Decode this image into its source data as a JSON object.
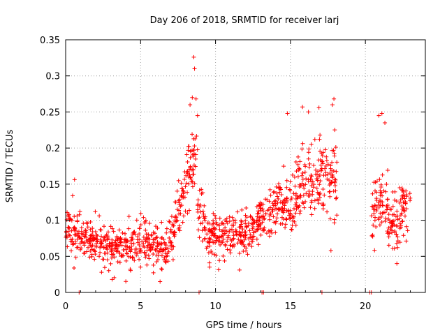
{
  "chart_data": {
    "type": "scatter",
    "title": "Day 206 of 2018, SRMTID for receiver larj",
    "xlabel": "GPS time / hours",
    "ylabel": "SRMTID / TECUs",
    "xlim": [
      0,
      24
    ],
    "ylim": [
      0,
      0.35
    ],
    "x_ticks": [
      0,
      5,
      10,
      15,
      20
    ],
    "x_tick_labels": [
      "0",
      "5",
      "10",
      "15",
      "20"
    ],
    "y_ticks": [
      0,
      0.05,
      0.1,
      0.15,
      0.2,
      0.25,
      0.3,
      0.35
    ],
    "y_tick_labels": [
      "0",
      "0.05",
      "0.1",
      "0.15",
      "0.2",
      "0.25",
      "0.3",
      "0.35"
    ],
    "grid": true,
    "marker": "+",
    "color": "#ff0000",
    "zero_points_x": [
      0.9,
      8.9,
      13.1,
      13.2,
      17.1,
      20.3,
      20.4
    ],
    "segments": [
      {
        "x": [
          0.0,
          0.3
        ],
        "mean": [
          0.085,
          0.095
        ],
        "spread": 0.03
      },
      {
        "x": [
          0.3,
          1.0
        ],
        "mean": [
          0.095,
          0.08
        ],
        "spread": 0.035
      },
      {
        "x": [
          1.0,
          2.5
        ],
        "mean": [
          0.075,
          0.07
        ],
        "spread": 0.025
      },
      {
        "x": [
          2.5,
          4.0
        ],
        "mean": [
          0.06,
          0.065
        ],
        "spread": 0.025
      },
      {
        "x": [
          4.0,
          5.5
        ],
        "mean": [
          0.065,
          0.075
        ],
        "spread": 0.028
      },
      {
        "x": [
          5.5,
          6.7
        ],
        "mean": [
          0.07,
          0.055
        ],
        "spread": 0.025
      },
      {
        "x": [
          6.7,
          7.3
        ],
        "mean": [
          0.06,
          0.08
        ],
        "spread": 0.03
      },
      {
        "x": [
          7.3,
          8.0
        ],
        "mean": [
          0.1,
          0.14
        ],
        "spread": 0.04
      },
      {
        "x": [
          8.0,
          8.8
        ],
        "mean": [
          0.15,
          0.2
        ],
        "spread": 0.05
      },
      {
        "x": [
          8.8,
          9.3
        ],
        "mean": [
          0.12,
          0.09
        ],
        "spread": 0.03
      },
      {
        "x": [
          9.3,
          11.0
        ],
        "mean": [
          0.075,
          0.08
        ],
        "spread": 0.028
      },
      {
        "x": [
          11.0,
          12.5
        ],
        "mean": [
          0.08,
          0.085
        ],
        "spread": 0.028
      },
      {
        "x": [
          12.5,
          13.5
        ],
        "mean": [
          0.09,
          0.11
        ],
        "spread": 0.03
      },
      {
        "x": [
          13.5,
          14.5
        ],
        "mean": [
          0.11,
          0.13
        ],
        "spread": 0.035
      },
      {
        "x": [
          14.5,
          15.5
        ],
        "mean": [
          0.12,
          0.13
        ],
        "spread": 0.035
      },
      {
        "x": [
          15.5,
          16.5
        ],
        "mean": [
          0.145,
          0.155
        ],
        "spread": 0.04
      },
      {
        "x": [
          16.5,
          18.1
        ],
        "mean": [
          0.155,
          0.165
        ],
        "spread": 0.045
      },
      {
        "x": [
          20.4,
          21.5
        ],
        "mean": [
          0.115,
          0.125
        ],
        "spread": 0.045
      },
      {
        "x": [
          21.5,
          22.3
        ],
        "mean": [
          0.09,
          0.1
        ],
        "spread": 0.035
      },
      {
        "x": [
          22.3,
          23.0
        ],
        "mean": [
          0.11,
          0.12
        ],
        "spread": 0.035
      }
    ],
    "outliers": [
      {
        "x": 8.55,
        "y": 0.326
      },
      {
        "x": 8.6,
        "y": 0.31
      },
      {
        "x": 8.45,
        "y": 0.27
      },
      {
        "x": 8.3,
        "y": 0.26
      },
      {
        "x": 8.7,
        "y": 0.268
      },
      {
        "x": 8.8,
        "y": 0.245
      },
      {
        "x": 14.8,
        "y": 0.248
      },
      {
        "x": 15.8,
        "y": 0.257
      },
      {
        "x": 16.2,
        "y": 0.25
      },
      {
        "x": 16.9,
        "y": 0.256
      },
      {
        "x": 17.9,
        "y": 0.268
      },
      {
        "x": 17.8,
        "y": 0.26
      },
      {
        "x": 21.1,
        "y": 0.248
      },
      {
        "x": 20.9,
        "y": 0.245
      },
      {
        "x": 21.3,
        "y": 0.235
      },
      {
        "x": 3.1,
        "y": 0.018
      },
      {
        "x": 6.3,
        "y": 0.015
      },
      {
        "x": 22.1,
        "y": 0.04
      },
      {
        "x": 17.7,
        "y": 0.058
      }
    ]
  }
}
